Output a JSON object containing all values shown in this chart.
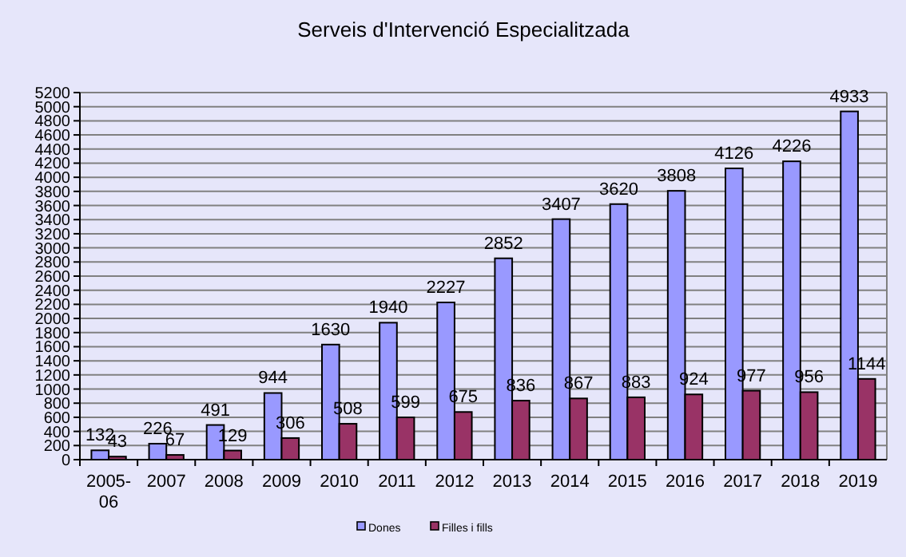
{
  "chart_data": {
    "type": "bar",
    "title": "Serveis d'Intervenció Especialitzada",
    "categories": [
      "2005-06",
      "2007",
      "2008",
      "2009",
      "2010",
      "2011",
      "2012",
      "2013",
      "2014",
      "2015",
      "2016",
      "2017",
      "2018",
      "2019"
    ],
    "series": [
      {
        "name": "Dones",
        "color": "#9999ff",
        "values": [
          132,
          226,
          491,
          944,
          1630,
          1940,
          2227,
          2852,
          3407,
          3620,
          3808,
          4126,
          4226,
          4933
        ]
      },
      {
        "name": "Filles i fills",
        "color": "#993366",
        "values": [
          43,
          67,
          129,
          306,
          508,
          599,
          675,
          836,
          867,
          883,
          924,
          977,
          956,
          1144
        ]
      }
    ],
    "ylim": [
      0,
      5200
    ],
    "yticks": [
      0,
      200,
      400,
      600,
      800,
      1000,
      1200,
      1400,
      1600,
      1800,
      2000,
      2200,
      2400,
      2600,
      2800,
      3000,
      3200,
      3400,
      3600,
      3800,
      4000,
      4200,
      4400,
      4600,
      4800,
      5000,
      5200
    ],
    "grid": "y",
    "legend": "bottom",
    "data_labels": true
  }
}
